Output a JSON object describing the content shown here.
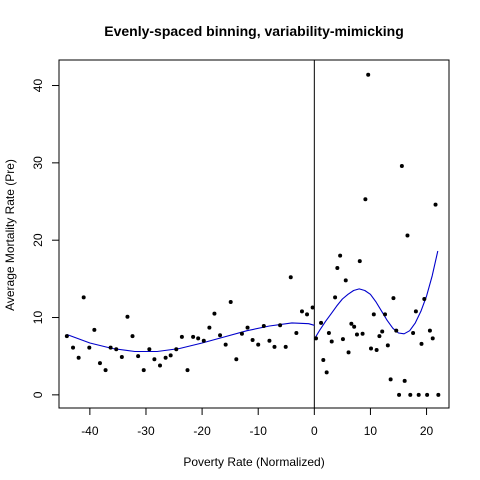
{
  "chart_data": {
    "type": "scatter",
    "title": "Evenly-spaced binning, variability-mimicking",
    "xlabel": "Poverty Rate (Normalized)",
    "ylabel": "Average Mortality Rate (Pre)",
    "xlim": [
      -45.5,
      24
    ],
    "ylim": [
      -1.7,
      43.3
    ],
    "x_ticks": [
      -40,
      -30,
      -20,
      -10,
      0,
      10,
      20
    ],
    "y_ticks": [
      0,
      10,
      20,
      30,
      40
    ],
    "x_tick_labels": [
      "-40",
      "-30",
      "-20",
      "-10",
      "0",
      "10",
      "20"
    ],
    "y_tick_labels": [
      "0",
      "10",
      "20",
      "30",
      "40"
    ],
    "cutoff": 0,
    "points_color": "#000000",
    "fit_color": "#0000cc",
    "series": [
      {
        "type": "scatter",
        "points": [
          [
            -44.1,
            7.6
          ],
          [
            -43.0,
            6.1
          ],
          [
            -42.0,
            4.8
          ],
          [
            -41.1,
            12.6
          ],
          [
            -40.1,
            6.1
          ],
          [
            -39.2,
            8.4
          ],
          [
            -38.2,
            4.1
          ],
          [
            -37.2,
            3.2
          ],
          [
            -36.3,
            6.1
          ],
          [
            -35.3,
            5.9
          ],
          [
            -34.3,
            4.9
          ],
          [
            -33.3,
            10.1
          ],
          [
            -32.4,
            7.6
          ],
          [
            -31.4,
            5.0
          ],
          [
            -30.4,
            3.2
          ],
          [
            -29.4,
            5.9
          ],
          [
            -28.5,
            4.6
          ],
          [
            -27.5,
            3.8
          ],
          [
            -26.5,
            4.8
          ],
          [
            -25.6,
            5.1
          ],
          [
            -24.6,
            5.9
          ],
          [
            -23.6,
            7.5
          ],
          [
            -22.6,
            3.2
          ],
          [
            -21.6,
            7.5
          ],
          [
            -20.7,
            7.3
          ],
          [
            -19.7,
            7.0
          ],
          [
            -18.7,
            8.7
          ],
          [
            -17.8,
            10.5
          ],
          [
            -16.8,
            7.7
          ],
          [
            -15.8,
            6.5
          ],
          [
            -14.9,
            12.0
          ],
          [
            -13.9,
            4.6
          ],
          [
            -12.9,
            7.9
          ],
          [
            -11.9,
            8.7
          ],
          [
            -11.0,
            7.1
          ],
          [
            -10.0,
            6.5
          ],
          [
            -9.0,
            8.9
          ],
          [
            -8.0,
            7.0
          ],
          [
            -7.1,
            6.2
          ],
          [
            -6.1,
            9.0
          ],
          [
            -5.1,
            6.2
          ],
          [
            -4.2,
            15.2
          ],
          [
            -3.2,
            8.0
          ],
          [
            -2.2,
            10.8
          ],
          [
            -1.3,
            10.4
          ],
          [
            -0.3,
            11.3
          ],
          [
            0.3,
            7.3
          ],
          [
            1.2,
            9.3
          ],
          [
            1.6,
            4.5
          ],
          [
            2.2,
            2.9
          ],
          [
            2.6,
            8.0
          ],
          [
            3.1,
            6.9
          ],
          [
            3.7,
            12.6
          ],
          [
            4.1,
            16.4
          ],
          [
            4.6,
            18.0
          ],
          [
            5.1,
            7.2
          ],
          [
            5.6,
            14.8
          ],
          [
            6.1,
            5.5
          ],
          [
            6.6,
            9.2
          ],
          [
            7.1,
            8.8
          ],
          [
            7.6,
            7.8
          ],
          [
            8.1,
            17.3
          ],
          [
            8.6,
            7.9
          ],
          [
            9.1,
            25.3
          ],
          [
            9.6,
            41.4
          ],
          [
            10.1,
            6.0
          ],
          [
            10.6,
            10.4
          ],
          [
            11.1,
            5.8
          ],
          [
            11.6,
            7.6
          ],
          [
            12.1,
            8.2
          ],
          [
            12.6,
            10.4
          ],
          [
            13.1,
            6.4
          ],
          [
            13.6,
            2.0
          ],
          [
            14.1,
            12.5
          ],
          [
            14.6,
            8.3
          ],
          [
            15.1,
            0.0
          ],
          [
            15.6,
            29.6
          ],
          [
            16.1,
            1.8
          ],
          [
            16.6,
            20.6
          ],
          [
            17.1,
            0.0
          ],
          [
            17.6,
            8.0
          ],
          [
            18.1,
            10.8
          ],
          [
            18.6,
            0.0
          ],
          [
            19.1,
            6.6
          ],
          [
            19.6,
            12.4
          ],
          [
            20.1,
            0.0
          ],
          [
            20.6,
            8.3
          ],
          [
            21.1,
            7.3
          ],
          [
            21.6,
            24.6
          ],
          [
            22.1,
            0.0
          ]
        ]
      },
      {
        "type": "line",
        "name": "left-fit",
        "points": [
          [
            -44.1,
            7.8
          ],
          [
            -40,
            6.7
          ],
          [
            -36,
            6.0
          ],
          [
            -32,
            5.6
          ],
          [
            -28,
            5.6
          ],
          [
            -24,
            6.0
          ],
          [
            -20,
            6.7
          ],
          [
            -16,
            7.5
          ],
          [
            -12,
            8.3
          ],
          [
            -8,
            8.9
          ],
          [
            -4,
            9.3
          ],
          [
            -1,
            9.2
          ],
          [
            0,
            9.0
          ]
        ]
      },
      {
        "type": "line",
        "name": "right-fit",
        "points": [
          [
            0,
            7.2
          ],
          [
            1,
            8.4
          ],
          [
            2,
            9.5
          ],
          [
            3,
            10.5
          ],
          [
            4,
            11.5
          ],
          [
            5,
            12.4
          ],
          [
            6,
            13.0
          ],
          [
            7,
            13.5
          ],
          [
            8,
            13.7
          ],
          [
            9,
            13.5
          ],
          [
            10,
            13.0
          ],
          [
            11,
            12.0
          ],
          [
            12,
            10.8
          ],
          [
            13,
            9.6
          ],
          [
            14,
            8.6
          ],
          [
            15,
            8.0
          ],
          [
            16,
            7.9
          ],
          [
            17,
            8.3
          ],
          [
            18,
            9.3
          ],
          [
            19,
            10.8
          ],
          [
            20,
            12.8
          ],
          [
            21,
            15.4
          ],
          [
            22,
            18.6
          ]
        ]
      }
    ]
  }
}
